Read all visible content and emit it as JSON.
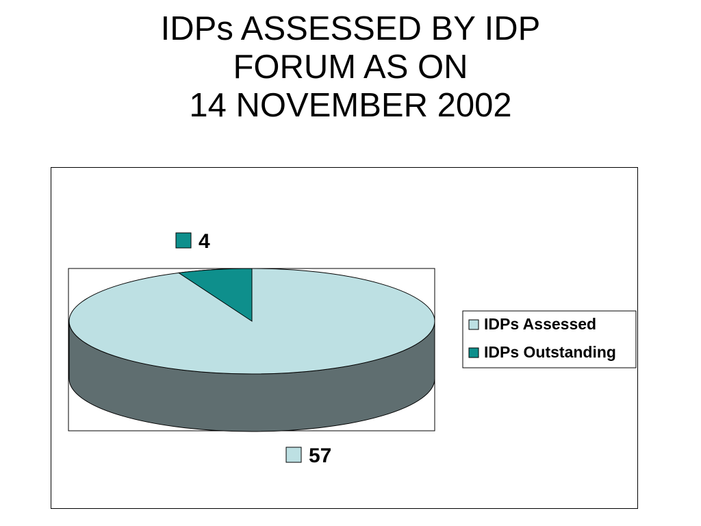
{
  "title": {
    "line1": "IDPs ASSESSED BY IDP",
    "line2": "FORUM AS ON",
    "line3": "14 NOVEMBER 2002"
  },
  "chart_data": {
    "type": "pie",
    "three_d": true,
    "slices": [
      {
        "label": "IDPs Assessed",
        "value": 57,
        "color": "#bde0e3"
      },
      {
        "label": "IDPs Outstanding",
        "value": 4,
        "color": "#0e8f8c"
      }
    ],
    "side_color": "#5f6e70",
    "legend": {
      "position": "right",
      "entries": [
        "IDPs Assessed",
        "IDPs Outstanding"
      ]
    },
    "data_labels": [
      "57",
      "4"
    ]
  }
}
